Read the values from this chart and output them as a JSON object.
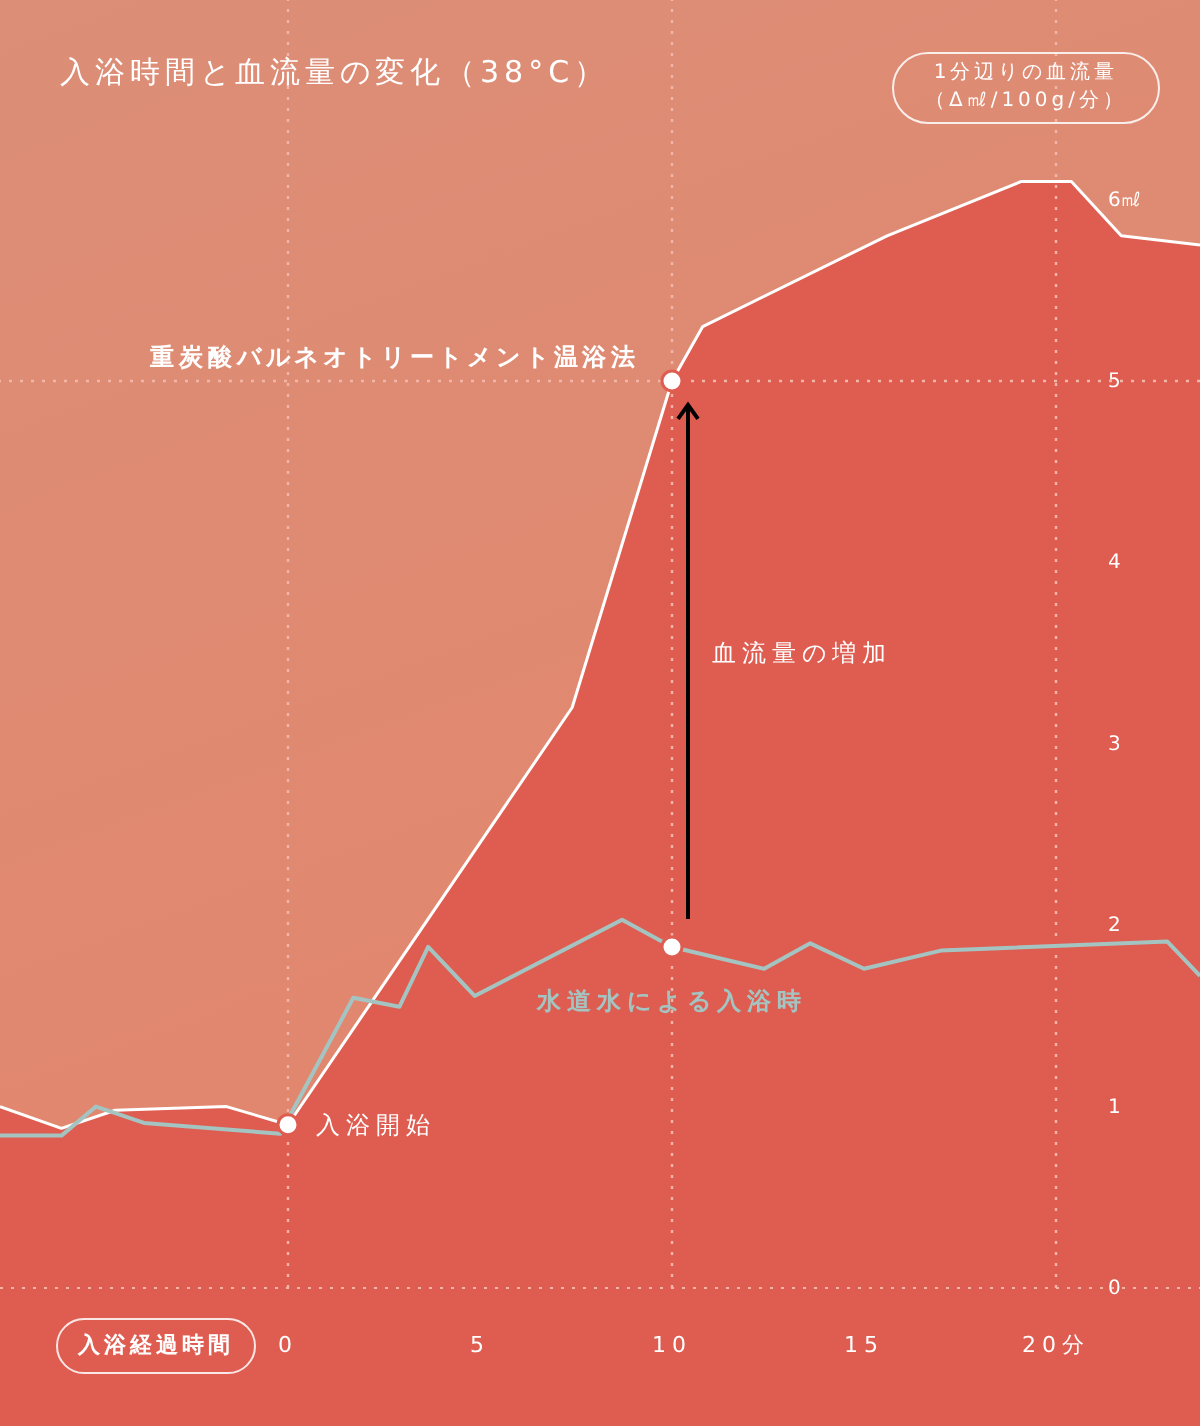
{
  "chart_data": {
    "type": "area",
    "title": "入浴時間と血流量の変化（38°C）",
    "xlabel": "入浴経過時間",
    "ylabel": "1分辺りの血流量（Δ㎖/100g/分）",
    "series": [
      {
        "name": "重炭酸バルネオトリートメント温浴法",
        "color": "#df5c50",
        "x": [
          -7.5,
          -5.9,
          -4.5,
          -1.6,
          0,
          7.4,
          10,
          10.8,
          15.6,
          19.1,
          20.4,
          21.7,
          23.75
        ],
        "values": [
          1.0,
          0.88,
          0.98,
          1.0,
          0.9,
          3.2,
          5.0,
          5.3,
          5.8,
          6.1,
          6.1,
          5.8,
          5.75
        ]
      },
      {
        "name": "水道水による入浴時",
        "type": "line",
        "color": "#a4c4c2",
        "x": [
          -7.5,
          -5.9,
          -5.0,
          -3.75,
          -0.2,
          1.7,
          2.9,
          3.65,
          4.86,
          8.7,
          10,
          12.4,
          13.6,
          15,
          17,
          22.9,
          23.75
        ],
        "values": [
          0.84,
          0.84,
          1.0,
          0.91,
          0.85,
          1.6,
          1.55,
          1.88,
          1.61,
          2.03,
          1.88,
          1.76,
          1.9,
          1.76,
          1.86,
          1.91,
          1.72
        ]
      },
      {
        "type": "scatter",
        "color": "#ffffff",
        "marker": "circle",
        "x": [
          0,
          10,
          10
        ],
        "values": [
          0.9,
          5.0,
          1.88
        ]
      }
    ],
    "xlim": [
      -7.5,
      23.75
    ],
    "xticks": [
      0,
      5,
      10,
      15,
      {
        "value": 20,
        "label": "20分"
      }
    ],
    "ylim": [
      0,
      7.1
    ],
    "yticks": [
      0,
      1,
      2,
      3,
      4,
      5,
      {
        "value": 6,
        "label": "6㎖"
      }
    ],
    "ref_lines": [
      {
        "axis": "x",
        "value": 0,
        "color": "#f2b6a8",
        "line_style": "dotted"
      },
      {
        "axis": "x",
        "value": 10,
        "color": "#f2b6a8",
        "line_style": "dotted"
      },
      {
        "axis": "x",
        "value": 20,
        "color": "#f2b6a8",
        "line_style": "dotted"
      },
      {
        "axis": "y",
        "value": 5,
        "color": "#f2b6a8",
        "line_style": "dotted"
      }
    ],
    "annotations": [
      {
        "text": "入浴開始",
        "x": 0,
        "y": 0.9
      },
      {
        "text": "血流量の増加",
        "x": 10,
        "y": 3.5
      }
    ]
  }
}
